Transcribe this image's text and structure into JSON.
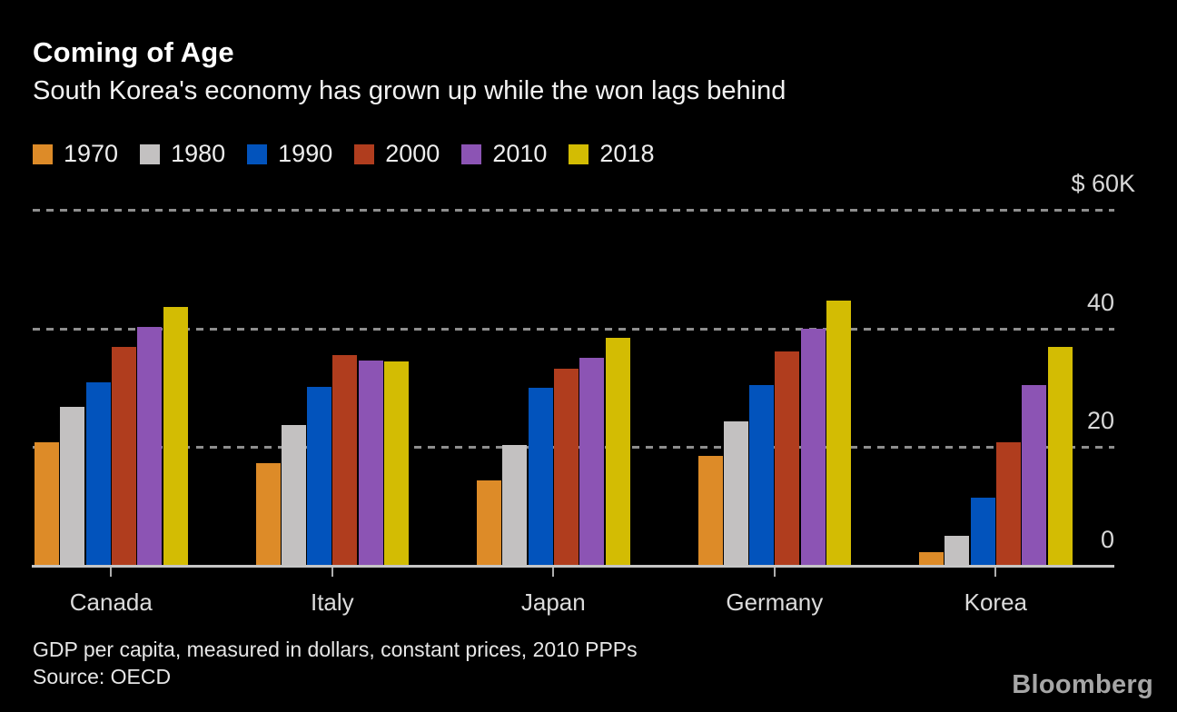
{
  "header": {
    "title": "Coming of Age",
    "subtitle": "South Korea's economy has grown up while the won lags behind"
  },
  "chart_data": {
    "type": "bar",
    "title": "Coming of Age",
    "subtitle": "South Korea's economy has grown up while the won lags behind",
    "categories": [
      "Canada",
      "Italy",
      "Japan",
      "Germany",
      "Korea"
    ],
    "series": [
      {
        "name": "1970",
        "color": "#dd8b28",
        "values": [
          20.6,
          17.2,
          14.3,
          18.4,
          2.2
        ]
      },
      {
        "name": "1980",
        "color": "#c3c1c1",
        "values": [
          26.7,
          23.6,
          20.2,
          24.2,
          4.9
        ]
      },
      {
        "name": "1990",
        "color": "#0253bc",
        "values": [
          30.7,
          30.0,
          29.8,
          30.3,
          11.3
        ]
      },
      {
        "name": "2000",
        "color": "#b03d1e",
        "values": [
          36.8,
          35.3,
          33.0,
          35.9,
          20.6
        ]
      },
      {
        "name": "2010",
        "color": "#8c54b4",
        "values": [
          40.1,
          34.5,
          34.9,
          39.8,
          30.3
        ]
      },
      {
        "name": "2018",
        "color": "#d3bc03",
        "values": [
          43.5,
          34.3,
          38.3,
          44.5,
          36.8
        ]
      }
    ],
    "unit": "thousand US dollars per capita",
    "ylim": [
      0,
      60
    ],
    "yticks": [
      {
        "label": "$ 60K",
        "value": 60
      },
      {
        "label": "40",
        "value": 40
      },
      {
        "label": "20",
        "value": 20
      },
      {
        "label": "0",
        "value": 0
      }
    ],
    "grid": "dashed horizontal, labels above lines, right-aligned",
    "legend_position": "top-left"
  },
  "footer": {
    "note": "GDP per capita, measured in dollars, constant prices, 2010 PPPs",
    "source": "Source: OECD",
    "brand": "Bloomberg"
  }
}
